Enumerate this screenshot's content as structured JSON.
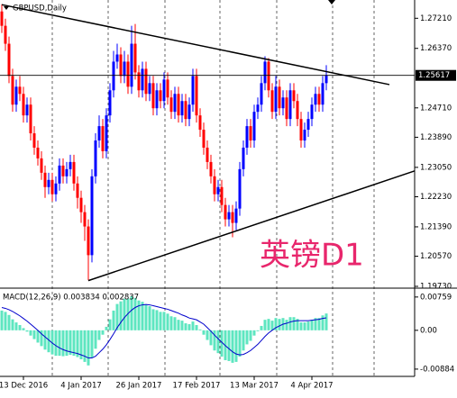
{
  "chart_data": {
    "type": "candlestick",
    "title": "GBPUSD,Daily",
    "watermark": "英镑D1",
    "up_color": "#0000ff",
    "down_color": "#ff0000",
    "categories": [
      null,
      null,
      null,
      null,
      null,
      null,
      "13 Dec 2016",
      null,
      null,
      null,
      null,
      null,
      null,
      null,
      null,
      null,
      null,
      null,
      null,
      null,
      null,
      null,
      "4 Jan 2017",
      null,
      null,
      null,
      null,
      null,
      null,
      null,
      null,
      null,
      null,
      null,
      null,
      null,
      null,
      null,
      "26 Jan 2017",
      null,
      null,
      null,
      null,
      null,
      null,
      null,
      null,
      null,
      null,
      null,
      null,
      null,
      null,
      null,
      "17 Feb 2017",
      null,
      null,
      null,
      null,
      null,
      null,
      null,
      null,
      null,
      null,
      null,
      null,
      null,
      null,
      null,
      "13 Mar 2017",
      null,
      null,
      null,
      null,
      null,
      null,
      null,
      null,
      null,
      null,
      null,
      null,
      null,
      null,
      null,
      "4 Apr 2017",
      null,
      null,
      null,
      null
    ],
    "open": [
      1.274,
      1.27,
      1.265,
      1.256,
      1.248,
      1.253,
      1.251,
      1.245,
      1.248,
      1.24,
      1.236,
      1.233,
      1.229,
      1.225,
      1.227,
      1.223,
      1.226,
      1.231,
      1.228,
      1.23,
      1.232,
      1.226,
      1.222,
      1.218,
      1.214,
      1.206,
      1.228,
      1.238,
      1.242,
      1.235,
      1.245,
      1.252,
      1.26,
      1.262,
      1.256,
      1.26,
      1.253,
      1.265,
      1.257,
      1.252,
      1.258,
      1.251,
      1.254,
      1.247,
      1.252,
      1.249,
      1.255,
      1.25,
      1.246,
      1.251,
      1.245,
      1.249,
      1.244,
      1.248,
      1.256,
      1.245,
      1.241,
      1.236,
      1.232,
      1.228,
      1.223,
      1.225,
      1.22,
      1.216,
      1.218,
      1.215,
      1.219,
      1.23,
      1.236,
      1.242,
      1.238,
      1.246,
      1.248,
      1.254,
      1.26,
      1.252,
      1.246,
      1.253,
      1.247,
      1.25,
      1.244,
      1.252,
      1.249,
      1.244,
      1.238,
      1.241,
      1.244,
      1.248,
      1.251,
      1.248,
      1.254
    ],
    "high": [
      1.276,
      1.272,
      1.267,
      1.258,
      1.255,
      1.256,
      1.253,
      1.25,
      1.25,
      1.242,
      1.238,
      1.235,
      1.231,
      1.229,
      1.229,
      1.228,
      1.233,
      1.233,
      1.232,
      1.234,
      1.234,
      1.228,
      1.224,
      1.22,
      1.216,
      1.23,
      1.24,
      1.245,
      1.244,
      1.247,
      1.254,
      1.263,
      1.265,
      1.264,
      1.263,
      1.262,
      1.27,
      1.2705,
      1.259,
      1.26,
      1.26,
      1.256,
      1.256,
      1.254,
      1.254,
      1.257,
      1.257,
      1.252,
      1.253,
      1.253,
      1.251,
      1.251,
      1.25,
      1.258,
      1.258,
      1.247,
      1.243,
      1.238,
      1.234,
      1.23,
      1.227,
      1.227,
      1.222,
      1.22,
      1.22,
      1.221,
      1.232,
      1.238,
      1.244,
      1.244,
      1.248,
      1.25,
      1.256,
      1.2615,
      1.261,
      1.254,
      1.256,
      1.255,
      1.252,
      1.252,
      1.254,
      1.254,
      1.251,
      1.246,
      1.243,
      1.246,
      1.25,
      1.253,
      1.253,
      1.256,
      1.259
    ],
    "low": [
      1.268,
      1.263,
      1.254,
      1.246,
      1.246,
      1.249,
      1.243,
      1.243,
      1.238,
      1.234,
      1.231,
      1.227,
      1.222,
      1.223,
      1.221,
      1.221,
      1.224,
      1.226,
      1.226,
      1.228,
      1.224,
      1.219,
      1.215,
      1.21,
      1.199,
      1.204,
      1.226,
      1.236,
      1.233,
      1.233,
      1.243,
      1.25,
      1.258,
      1.254,
      1.254,
      1.251,
      1.251,
      1.255,
      1.25,
      1.25,
      1.249,
      1.249,
      1.245,
      1.245,
      1.247,
      1.247,
      1.248,
      1.244,
      1.244,
      1.243,
      1.243,
      1.242,
      1.242,
      1.246,
      1.243,
      1.239,
      1.234,
      1.23,
      1.226,
      1.221,
      1.221,
      1.218,
      1.214,
      1.214,
      1.211,
      1.213,
      1.217,
      1.228,
      1.234,
      1.236,
      1.236,
      1.244,
      1.246,
      1.252,
      1.25,
      1.244,
      1.244,
      1.245,
      1.245,
      1.242,
      1.242,
      1.247,
      1.242,
      1.236,
      1.236,
      1.239,
      1.242,
      1.246,
      1.246,
      1.246,
      1.252
    ],
    "close": [
      1.27,
      1.265,
      1.256,
      1.248,
      1.253,
      1.251,
      1.245,
      1.248,
      1.24,
      1.236,
      1.233,
      1.229,
      1.225,
      1.227,
      1.223,
      1.226,
      1.231,
      1.228,
      1.23,
      1.232,
      1.226,
      1.222,
      1.218,
      1.214,
      1.206,
      1.228,
      1.238,
      1.242,
      1.235,
      1.245,
      1.252,
      1.26,
      1.262,
      1.256,
      1.26,
      1.253,
      1.265,
      1.257,
      1.252,
      1.258,
      1.251,
      1.254,
      1.247,
      1.252,
      1.249,
      1.255,
      1.25,
      1.246,
      1.251,
      1.245,
      1.249,
      1.244,
      1.248,
      1.256,
      1.245,
      1.241,
      1.236,
      1.232,
      1.228,
      1.223,
      1.225,
      1.22,
      1.216,
      1.218,
      1.215,
      1.219,
      1.23,
      1.236,
      1.242,
      1.238,
      1.246,
      1.248,
      1.254,
      1.26,
      1.252,
      1.246,
      1.253,
      1.247,
      1.25,
      1.244,
      1.252,
      1.249,
      1.244,
      1.238,
      1.241,
      1.244,
      1.248,
      1.251,
      1.248,
      1.254,
      1.25617
    ],
    "xlim": [
      -0.5,
      114.5
    ],
    "ylim": [
      1.1973,
      1.2772
    ],
    "yticks": [
      {
        "value": 1.2721,
        "label": "1.27210"
      },
      {
        "value": 1.2637,
        "label": "1.26370"
      },
      {
        "value": 1.2471,
        "label": "1.24710"
      },
      {
        "value": 1.2389,
        "label": "1.23890"
      },
      {
        "value": 1.2305,
        "label": "1.23050"
      },
      {
        "value": 1.2223,
        "label": "1.22230"
      },
      {
        "value": 1.2139,
        "label": "1.21390"
      },
      {
        "value": 1.2057,
        "label": "1.20570"
      },
      {
        "value": 1.1973,
        "label": "1.19730"
      }
    ],
    "trendlines": [
      {
        "color": "#000000",
        "x": [
          0,
          107.5
        ],
        "y": [
          1.2759,
          1.2536
        ]
      },
      {
        "color": "#000000",
        "x": [
          24,
          114.5
        ],
        "y": [
          1.1989,
          1.2295
        ]
      }
    ],
    "macd": {
      "label": "MACD(12,26,9) 0.003834 0.002837",
      "hist_color": "#5ee6c0",
      "signal_color": "#0000cc",
      "ylim": [
        -0.0105,
        0.0092
      ],
      "yticks": [
        0.00759,
        {
          "value": 0,
          "label": "0.00"
        },
        -0.00884
      ],
      "histogram": [
        0.0045,
        0.0042,
        0.0035,
        0.0025,
        0.0018,
        0.0012,
        0.0005,
        -0.0003,
        -0.0012,
        -0.002,
        -0.0028,
        -0.0036,
        -0.0044,
        -0.005,
        -0.0055,
        -0.0058,
        -0.0058,
        -0.0059,
        -0.0058,
        -0.0056,
        -0.0058,
        -0.0061,
        -0.0066,
        -0.0072,
        -0.008,
        -0.0062,
        -0.0042,
        -0.0022,
        -0.001,
        0.0008,
        0.0025,
        0.0045,
        0.006,
        0.0066,
        0.0072,
        0.0072,
        0.0078,
        0.0074,
        0.0068,
        0.0065,
        0.0058,
        0.0055,
        0.0048,
        0.0046,
        0.0042,
        0.0042,
        0.0038,
        0.0032,
        0.003,
        0.0024,
        0.0022,
        0.0016,
        0.0014,
        0.002,
        0.0012,
        0.0002,
        -0.001,
        -0.0022,
        -0.0034,
        -0.0046,
        -0.0052,
        -0.006,
        -0.0068,
        -0.007,
        -0.0074,
        -0.0072,
        -0.006,
        -0.0046,
        -0.0032,
        -0.0024,
        -0.0012,
        -0.0002,
        0.001,
        0.0024,
        0.0026,
        0.0022,
        0.0028,
        0.0026,
        0.0028,
        0.0024,
        0.003,
        0.003,
        0.0026,
        0.0018,
        0.0018,
        0.002,
        0.0024,
        0.0028,
        0.0028,
        0.0034,
        0.003834
      ],
      "signal": [
        0.0052,
        0.005,
        0.0047,
        0.0043,
        0.0038,
        0.0033,
        0.0027,
        0.0021,
        0.0014,
        0.0007,
        0,
        -0.0008,
        -0.0015,
        -0.0022,
        -0.0029,
        -0.0035,
        -0.004,
        -0.0044,
        -0.0047,
        -0.0049,
        -0.0051,
        -0.0053,
        -0.0056,
        -0.0059,
        -0.0063,
        -0.0063,
        -0.0059,
        -0.0051,
        -0.0043,
        -0.0033,
        -0.0021,
        -0.0008,
        0.0006,
        0.0018,
        0.0029,
        0.0038,
        0.0046,
        0.0052,
        0.0056,
        0.0058,
        0.0059,
        0.0058,
        0.0056,
        0.0054,
        0.0052,
        0.005,
        0.0048,
        0.0045,
        0.0042,
        0.0039,
        0.0035,
        0.0032,
        0.0028,
        0.0026,
        0.0024,
        0.0019,
        0.0014,
        0.0006,
        -0.0002,
        -0.0011,
        -0.0019,
        -0.0027,
        -0.0035,
        -0.0042,
        -0.0049,
        -0.0054,
        -0.0056,
        -0.0055,
        -0.0051,
        -0.0046,
        -0.0039,
        -0.0032,
        -0.0023,
        -0.0014,
        -0.0006,
        0,
        0.0006,
        0.001,
        0.0014,
        0.0016,
        0.0019,
        0.0021,
        0.0022,
        0.0022,
        0.0022,
        0.0022,
        0.0023,
        0.0024,
        0.0025,
        0.0027,
        0.002837
      ]
    }
  }
}
